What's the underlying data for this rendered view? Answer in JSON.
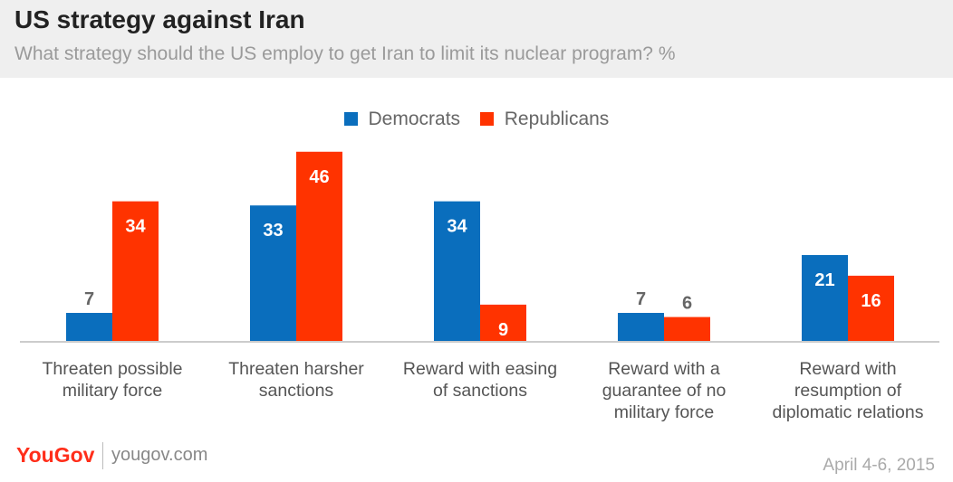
{
  "header": {
    "title": "US strategy against Iran",
    "subtitle": "What strategy should the US employ to get Iran to limit its nuclear program? %"
  },
  "footer": {
    "logo": "YouGov",
    "url": "yougov.com",
    "date": "April 4-6, 2015"
  },
  "chart_data": {
    "type": "bar",
    "title": "US strategy against Iran",
    "subtitle": "What strategy should the US employ to get Iran to limit its nuclear program? %",
    "categories": [
      [
        "Threaten possible",
        "military force"
      ],
      [
        "Threaten harsher",
        "sanctions"
      ],
      [
        "Reward with easing",
        "of sanctions"
      ],
      [
        "Reward with a",
        "guarantee of no",
        "military force"
      ],
      [
        "Reward with",
        "resumption of",
        "diplomatic relations"
      ]
    ],
    "series": [
      {
        "name": "Democrats",
        "color": "#0a6ebd",
        "values": [
          7,
          33,
          34,
          7,
          21
        ]
      },
      {
        "name": "Republicans",
        "color": "#ff3300",
        "values": [
          34,
          46,
          9,
          6,
          16
        ]
      }
    ],
    "ylim": [
      0,
      46
    ],
    "legend": "top-center",
    "grid": false
  }
}
